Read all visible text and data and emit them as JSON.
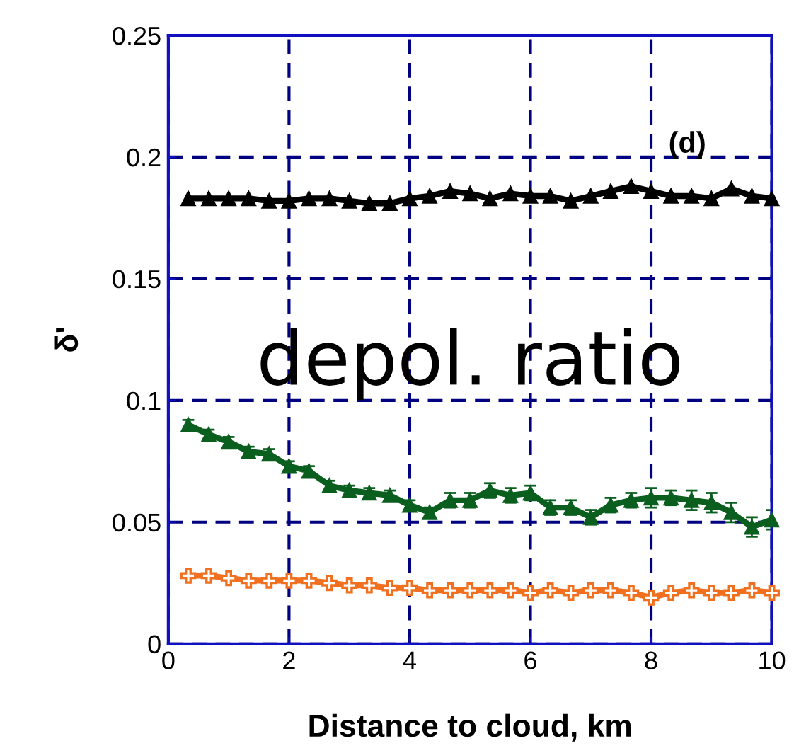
{
  "chart_data": {
    "type": "line",
    "xlabel": "Distance to cloud, km",
    "ylabel": "δ'",
    "annotations": [
      "(d)",
      "depol. ratio"
    ],
    "x": [
      0.33,
      0.67,
      1.0,
      1.33,
      1.67,
      2.0,
      2.33,
      2.67,
      3.0,
      3.33,
      3.67,
      4.0,
      4.33,
      4.67,
      5.0,
      5.33,
      5.67,
      6.0,
      6.33,
      6.67,
      7.0,
      7.33,
      7.67,
      8.0,
      8.33,
      8.67,
      9.0,
      9.33,
      9.67,
      10.0
    ],
    "series": [
      {
        "color": "#000000",
        "marker": "triangle",
        "values": [
          0.183,
          0.183,
          0.183,
          0.183,
          0.182,
          0.182,
          0.183,
          0.183,
          0.182,
          0.181,
          0.181,
          0.183,
          0.184,
          0.186,
          0.185,
          0.183,
          0.185,
          0.184,
          0.184,
          0.182,
          0.184,
          0.186,
          0.188,
          0.186,
          0.184,
          0.184,
          0.183,
          0.187,
          0.184,
          0.183
        ]
      },
      {
        "color": "#0a5e1e",
        "marker": "triangle",
        "errors": [
          0.002,
          0.002,
          0.002,
          0.002,
          0.002,
          0.002,
          0.002,
          0.002,
          0.002,
          0.002,
          0.002,
          0.002,
          0.002,
          0.003,
          0.003,
          0.003,
          0.003,
          0.003,
          0.003,
          0.003,
          0.003,
          0.003,
          0.003,
          0.004,
          0.003,
          0.004,
          0.004,
          0.004,
          0.004,
          0.004
        ],
        "values": [
          0.09,
          0.086,
          0.083,
          0.079,
          0.078,
          0.073,
          0.071,
          0.065,
          0.063,
          0.062,
          0.061,
          0.057,
          0.054,
          0.059,
          0.059,
          0.063,
          0.061,
          0.062,
          0.056,
          0.056,
          0.052,
          0.057,
          0.059,
          0.06,
          0.06,
          0.059,
          0.058,
          0.054,
          0.048,
          0.051
        ]
      },
      {
        "color": "#f07020",
        "marker": "cross",
        "values": [
          0.028,
          0.028,
          0.027,
          0.026,
          0.026,
          0.026,
          0.026,
          0.025,
          0.024,
          0.024,
          0.023,
          0.023,
          0.022,
          0.022,
          0.022,
          0.022,
          0.022,
          0.021,
          0.022,
          0.021,
          0.022,
          0.022,
          0.021,
          0.019,
          0.021,
          0.022,
          0.021,
          0.021,
          0.022,
          0.021
        ]
      }
    ],
    "xlim": [
      0,
      10
    ],
    "xticks": [
      0,
      2,
      4,
      6,
      8,
      10
    ],
    "ylim": [
      0,
      0.25
    ],
    "yticks": [
      0,
      0.05,
      0.1,
      0.15,
      0.2,
      0.25
    ],
    "grid": true,
    "line_style": "solid"
  }
}
